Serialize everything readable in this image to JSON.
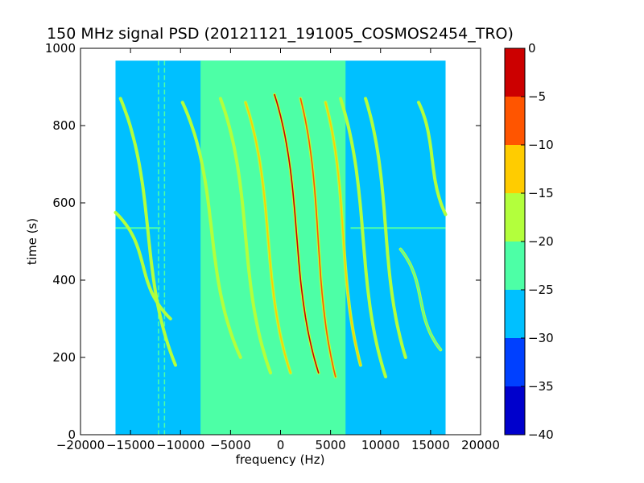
{
  "chart_data": {
    "type": "heatmap",
    "title": "150 MHz signal PSD (20121121_191005_COSMOS2454_TRO)",
    "xlabel": "frequency (Hz)",
    "ylabel": "time (s)",
    "xlim": [
      -20000,
      20000
    ],
    "ylim": [
      0,
      1000
    ],
    "xticks": [
      -20000,
      -15000,
      -10000,
      -5000,
      0,
      5000,
      10000,
      15000,
      20000
    ],
    "xtick_labels": [
      "−20000",
      "−15000",
      "−10000",
      "−5000",
      "0",
      "5000",
      "10000",
      "15000",
      "20000"
    ],
    "yticks": [
      0,
      200,
      400,
      600,
      800,
      1000
    ],
    "ytick_labels": [
      "0",
      "200",
      "400",
      "600",
      "800",
      "1000"
    ],
    "data_extent": {
      "x": [
        -16500,
        16500
      ],
      "y": [
        0,
        968
      ]
    },
    "background_band": {
      "x": [
        -8000,
        6500
      ],
      "level_db": -22.5
    },
    "background_level_db": -27.5,
    "horizontal_line": {
      "t": 535,
      "x_ranges": [
        [
          -16500,
          -12000
        ],
        [
          7000,
          16500
        ]
      ]
    },
    "vertical_lines": [
      -12200,
      -11600
    ],
    "traces": [
      {
        "f_at_top": -16000,
        "f_at_bottom": -10500,
        "t_top": 870,
        "t_bottom": 180,
        "peak_db": -17
      },
      {
        "f_at_top": -16500,
        "f_at_bottom": -11000,
        "t_top": 575,
        "t_bottom": 300,
        "peak_db": -19
      },
      {
        "f_at_top": -9800,
        "f_at_bottom": -4000,
        "t_top": 860,
        "t_bottom": 200,
        "peak_db": -18
      },
      {
        "f_at_top": -6000,
        "f_at_bottom": -1000,
        "t_top": 870,
        "t_bottom": 160,
        "peak_db": -15
      },
      {
        "f_at_top": -3500,
        "f_at_bottom": 1000,
        "t_top": 860,
        "t_bottom": 160,
        "peak_db": -10
      },
      {
        "f_at_top": -600,
        "f_at_bottom": 3800,
        "t_top": 880,
        "t_bottom": 160,
        "peak_db": -3
      },
      {
        "f_at_top": 2000,
        "f_at_bottom": 5500,
        "t_top": 870,
        "t_bottom": 150,
        "peak_db": -5
      },
      {
        "f_at_top": 4500,
        "f_at_bottom": 8000,
        "t_top": 860,
        "t_bottom": 180,
        "peak_db": -10
      },
      {
        "f_at_top": 6000,
        "f_at_bottom": 10500,
        "t_top": 870,
        "t_bottom": 150,
        "peak_db": -15
      },
      {
        "f_at_top": 8500,
        "f_at_bottom": 12500,
        "t_top": 870,
        "t_bottom": 200,
        "peak_db": -18
      },
      {
        "f_at_top": 13800,
        "f_at_bottom": 16500,
        "t_top": 860,
        "t_bottom": 570,
        "peak_db": -18
      },
      {
        "f_at_top": 12000,
        "f_at_bottom": 16000,
        "t_top": 480,
        "t_bottom": 220,
        "peak_db": -21
      }
    ],
    "colorbar": {
      "levels": [
        -40,
        -35,
        -30,
        -25,
        -20,
        -15,
        -10,
        -5,
        0
      ],
      "tick_labels": [
        "−40",
        "−35",
        "−30",
        "−25",
        "−20",
        "−15",
        "−10",
        "−5",
        "0"
      ],
      "colors": [
        "#0000cc",
        "#0033ff",
        "#0099ff",
        "#00ccff",
        "#4dffb3",
        "#b3ff3c",
        "#ffcc00",
        "#ff5500",
        "#cc0000"
      ],
      "bins": [
        {
          "range": [
            -40,
            -35
          ],
          "color": "#0000cc"
        },
        {
          "range": [
            -35,
            -30
          ],
          "color": "#0040ff"
        },
        {
          "range": [
            -30,
            -25
          ],
          "color": "#00c0ff"
        },
        {
          "range": [
            -25,
            -20
          ],
          "color": "#4dffa6"
        },
        {
          "range": [
            -20,
            -15
          ],
          "color": "#b3ff3c"
        },
        {
          "range": [
            -15,
            -10
          ],
          "color": "#ffcc00"
        },
        {
          "range": [
            -10,
            -5
          ],
          "color": "#ff5500"
        },
        {
          "range": [
            -5,
            0
          ],
          "color": "#cc0000"
        }
      ]
    }
  }
}
